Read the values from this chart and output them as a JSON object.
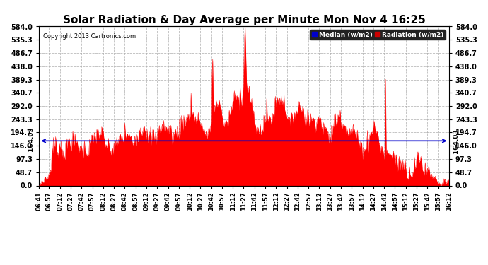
{
  "title": "Solar Radiation & Day Average per Minute Mon Nov 4 16:25",
  "copyright_text": "Copyright 2013 Cartronics.com",
  "median_value": 164.03,
  "y_ticks": [
    0.0,
    48.7,
    97.3,
    146.0,
    194.7,
    243.3,
    292.0,
    340.7,
    389.3,
    438.0,
    486.7,
    535.3,
    584.0
  ],
  "y_max": 584.0,
  "y_min": 0.0,
  "fill_color": "#ff0000",
  "median_line_color": "#0000cc",
  "background_color": "#ffffff",
  "grid_color": "#aaaaaa",
  "title_fontsize": 11,
  "x_labels": [
    "06:41",
    "06:57",
    "07:12",
    "07:27",
    "07:42",
    "07:57",
    "08:12",
    "08:27",
    "08:42",
    "08:57",
    "09:12",
    "09:27",
    "09:42",
    "09:57",
    "10:12",
    "10:27",
    "10:42",
    "10:57",
    "11:12",
    "11:27",
    "11:42",
    "11:57",
    "12:12",
    "12:27",
    "12:42",
    "12:57",
    "13:12",
    "13:27",
    "13:42",
    "13:57",
    "14:12",
    "14:27",
    "14:42",
    "14:57",
    "15:12",
    "15:27",
    "15:42",
    "15:57",
    "16:12"
  ]
}
